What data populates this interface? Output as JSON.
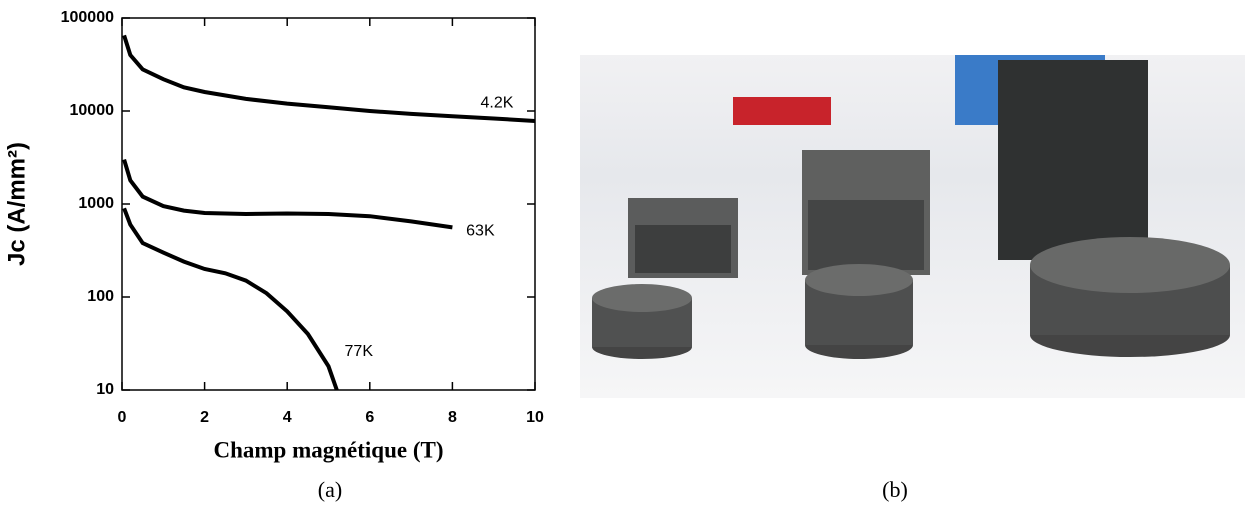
{
  "chart_data": {
    "type": "line",
    "xlabel": "Champ magnétique (T)",
    "ylabel": "Jc (A/mm²)",
    "xlim": [
      0,
      10
    ],
    "xticks": [
      0,
      2,
      4,
      6,
      8,
      10
    ],
    "ylim": [
      10,
      100000
    ],
    "yticks": [
      10,
      100,
      1000,
      10000,
      100000
    ],
    "log_y": true,
    "series": [
      {
        "name": "4.2K",
        "color": "#000000",
        "x": [
          0.05,
          0.2,
          0.5,
          1,
          1.5,
          2,
          3,
          4,
          5,
          6,
          7,
          8,
          9,
          10
        ],
        "values": [
          65000,
          40000,
          28000,
          22000,
          18000,
          16000,
          13500,
          12000,
          11000,
          10000,
          9300,
          8800,
          8300,
          7800
        ]
      },
      {
        "name": "63K",
        "color": "#000000",
        "x": [
          0.05,
          0.2,
          0.5,
          1,
          1.5,
          2,
          3,
          4,
          5,
          6,
          7,
          8
        ],
        "values": [
          3000,
          1800,
          1200,
          950,
          850,
          800,
          780,
          790,
          780,
          740,
          650,
          560
        ]
      },
      {
        "name": "77K",
        "color": "#000000",
        "x": [
          0.05,
          0.2,
          0.5,
          1,
          1.5,
          2,
          2.5,
          3,
          3.5,
          4,
          4.5,
          5,
          5.2
        ],
        "values": [
          900,
          600,
          380,
          300,
          240,
          200,
          180,
          150,
          110,
          70,
          40,
          18,
          10
        ]
      }
    ]
  },
  "captions": [
    "(a)",
    "(b)"
  ]
}
